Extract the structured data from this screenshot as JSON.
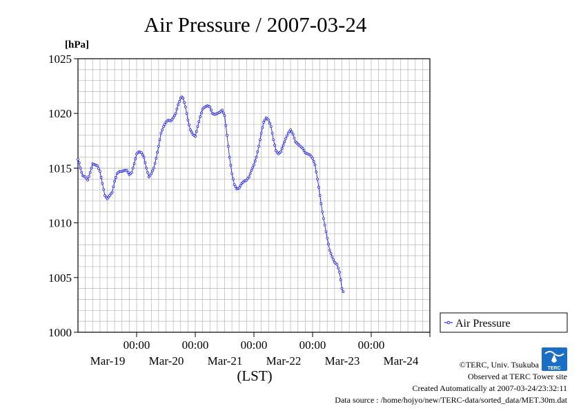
{
  "chart_data": {
    "type": "line",
    "title": "Air Pressure / 2007-03-24",
    "ylabel_unit": "[hPa]",
    "xlabel": "(LST)",
    "ylim": [
      1000,
      1025
    ],
    "y_ticks": [
      1000,
      1005,
      1010,
      1015,
      1020,
      1025
    ],
    "y_tick_labels": [
      "1000",
      "1005",
      "1010",
      "1015",
      "1020",
      "1025"
    ],
    "xlim": [
      0,
      144
    ],
    "x_ticks": [
      {
        "hour": 24,
        "time": "00:00",
        "date": "Mar-19"
      },
      {
        "hour": 48,
        "time": "00:00",
        "date": "Mar-20"
      },
      {
        "hour": 72,
        "time": "00:00",
        "date": "Mar-21"
      },
      {
        "hour": 96,
        "time": "00:00",
        "date": "Mar-22"
      },
      {
        "hour": 120,
        "time": "00:00",
        "date": "Mar-23"
      },
      {
        "hour": 144,
        "time": "",
        "date": "Mar-24"
      }
    ],
    "grid": true,
    "legend_position": "right",
    "series": [
      {
        "name": "Air Pressure",
        "color": "#0000ff",
        "marker": "circle",
        "interval_hours": 0.5,
        "anchors": [
          [
            0,
            1015.8
          ],
          [
            0.5,
            1015.5
          ],
          [
            1,
            1015.0
          ],
          [
            1.5,
            1014.6
          ],
          [
            2,
            1014.3
          ],
          [
            3,
            1014.2
          ],
          [
            4,
            1013.9
          ],
          [
            5,
            1014.6
          ],
          [
            6,
            1015.4
          ],
          [
            7,
            1015.3
          ],
          [
            8,
            1015.2
          ],
          [
            9,
            1014.7
          ],
          [
            10,
            1013.6
          ],
          [
            11,
            1012.5
          ],
          [
            12,
            1012.2
          ],
          [
            13,
            1012.5
          ],
          [
            14,
            1012.8
          ],
          [
            15,
            1013.8
          ],
          [
            16,
            1014.5
          ],
          [
            17,
            1014.7
          ],
          [
            18,
            1014.7
          ],
          [
            19,
            1014.8
          ],
          [
            20,
            1014.8
          ],
          [
            21,
            1014.4
          ],
          [
            22,
            1014.6
          ],
          [
            23,
            1015.4
          ],
          [
            24,
            1016.3
          ],
          [
            25,
            1016.5
          ],
          [
            26,
            1016.4
          ],
          [
            27,
            1016.0
          ],
          [
            28,
            1015.0
          ],
          [
            29,
            1014.2
          ],
          [
            30,
            1014.5
          ],
          [
            31,
            1015.0
          ],
          [
            32,
            1015.9
          ],
          [
            33,
            1017.0
          ],
          [
            34,
            1018.2
          ],
          [
            35,
            1018.8
          ],
          [
            36,
            1019.2
          ],
          [
            37,
            1019.4
          ],
          [
            38,
            1019.3
          ],
          [
            39,
            1019.6
          ],
          [
            40,
            1020.0
          ],
          [
            41,
            1020.8
          ],
          [
            42,
            1021.4
          ],
          [
            42.5,
            1021.5
          ],
          [
            43,
            1021.4
          ],
          [
            44,
            1020.6
          ],
          [
            45,
            1019.4
          ],
          [
            46,
            1018.5
          ],
          [
            47,
            1018.1
          ],
          [
            48,
            1017.9
          ],
          [
            49,
            1018.8
          ],
          [
            50,
            1019.7
          ],
          [
            51,
            1020.4
          ],
          [
            52,
            1020.6
          ],
          [
            53,
            1020.7
          ],
          [
            54,
            1020.6
          ],
          [
            55,
            1020.0
          ],
          [
            56,
            1019.9
          ],
          [
            57,
            1020.0
          ],
          [
            58,
            1020.1
          ],
          [
            59,
            1020.3
          ],
          [
            60,
            1019.8
          ],
          [
            61,
            1018.0
          ],
          [
            62,
            1016.0
          ],
          [
            63,
            1014.5
          ],
          [
            64,
            1013.5
          ],
          [
            65,
            1013.1
          ],
          [
            66,
            1013.2
          ],
          [
            67,
            1013.6
          ],
          [
            68,
            1013.8
          ],
          [
            69,
            1013.9
          ],
          [
            70,
            1014.2
          ],
          [
            71,
            1014.8
          ],
          [
            72,
            1015.3
          ],
          [
            73,
            1016.0
          ],
          [
            74,
            1017.0
          ],
          [
            75,
            1018.2
          ],
          [
            76,
            1019.2
          ],
          [
            77,
            1019.6
          ],
          [
            78,
            1019.4
          ],
          [
            79,
            1018.8
          ],
          [
            80,
            1017.6
          ],
          [
            81,
            1016.6
          ],
          [
            82,
            1016.3
          ],
          [
            83,
            1016.5
          ],
          [
            84,
            1017.1
          ],
          [
            85,
            1017.7
          ],
          [
            86,
            1018.2
          ],
          [
            87,
            1018.5
          ],
          [
            88,
            1018.1
          ],
          [
            89,
            1017.4
          ],
          [
            90,
            1017.2
          ],
          [
            91,
            1017.0
          ],
          [
            92,
            1016.8
          ],
          [
            93,
            1016.4
          ],
          [
            94,
            1016.3
          ],
          [
            95,
            1016.2
          ],
          [
            96,
            1015.9
          ],
          [
            97,
            1015.3
          ],
          [
            98,
            1014.0
          ],
          [
            99,
            1012.5
          ],
          [
            100,
            1011.0
          ],
          [
            101,
            1009.8
          ],
          [
            102,
            1008.6
          ],
          [
            103,
            1007.5
          ],
          [
            104,
            1006.9
          ],
          [
            105,
            1006.4
          ],
          [
            106,
            1006.2
          ],
          [
            107,
            1005.5
          ],
          [
            107.5,
            1004.8
          ],
          [
            108,
            1004.0
          ],
          [
            108.5,
            1003.7
          ]
        ]
      }
    ]
  },
  "footer": {
    "credit": "©TERC, Univ. Tsukuba",
    "observed": "Observed at TERC Tower site",
    "created": "Created Automatically at 2007-03-24/23:32:11",
    "source": "Data source : /home/hojyo/new/TERC-data/sorted_data/MET.30m.dat",
    "logo_text": "TERC"
  }
}
